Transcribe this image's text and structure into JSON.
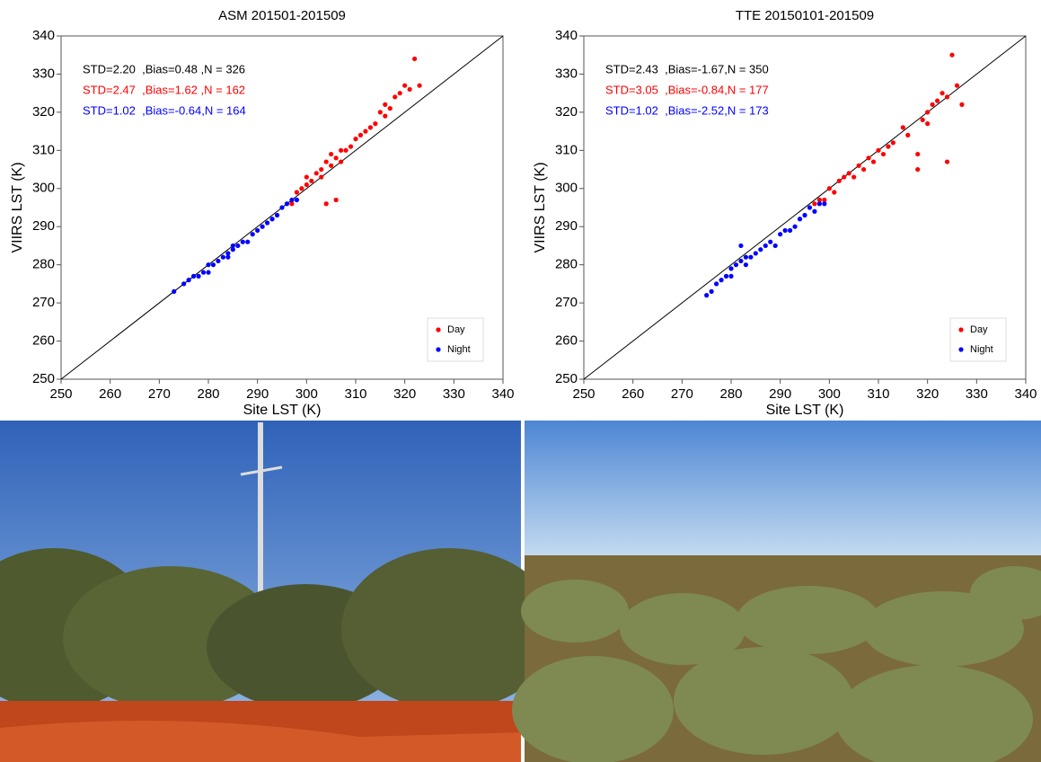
{
  "chart_data": [
    {
      "type": "scatter",
      "title": "ASM 201501-201509",
      "x_label": "Site LST (K)",
      "y_label": "VIIRS LST (K)",
      "xlim": [
        250,
        340
      ],
      "ylim": [
        250,
        340
      ],
      "xticks": [
        250,
        260,
        270,
        280,
        290,
        300,
        310,
        320,
        330,
        340
      ],
      "yticks": [
        250,
        260,
        270,
        280,
        290,
        300,
        310,
        320,
        330,
        340
      ],
      "diagonal": true,
      "legend": "lower right",
      "annotations": [
        {
          "text": "STD=2.20  ,Bias=0.48 ,N = 326",
          "color": "#000000"
        },
        {
          "text": "STD=2.47  ,Bias=1.62 ,N = 162",
          "color": "#ff0000"
        },
        {
          "text": "STD=1.02  ,Bias=-0.64,N = 164",
          "color": "#0000ff"
        }
      ],
      "series": [
        {
          "name": "Day",
          "color": "#ff0000",
          "x": [
            297,
            298,
            299,
            300,
            300,
            301,
            302,
            303,
            303,
            304,
            305,
            305,
            306,
            307,
            307,
            308,
            309,
            310,
            311,
            312,
            313,
            314,
            315,
            316,
            316,
            317,
            318,
            319,
            320,
            321,
            322,
            323,
            304,
            306
          ],
          "values": [
            296,
            299,
            300,
            301,
            303,
            302,
            304,
            303,
            305,
            307,
            306,
            309,
            308,
            310,
            307,
            310,
            311,
            313,
            314,
            315,
            316,
            317,
            320,
            322,
            319,
            321,
            324,
            325,
            327,
            326,
            334,
            327,
            296,
            297
          ]
        },
        {
          "name": "Night",
          "color": "#0000ff",
          "x": [
            273,
            275,
            276,
            277,
            278,
            279,
            280,
            281,
            282,
            283,
            284,
            285,
            285,
            286,
            287,
            288,
            289,
            290,
            291,
            292,
            293,
            294,
            295,
            296,
            297,
            298,
            284,
            280
          ],
          "values": [
            273,
            275,
            276,
            277,
            277,
            278,
            280,
            280,
            281,
            282,
            283,
            284,
            285,
            285,
            286,
            286,
            288,
            289,
            290,
            291,
            292,
            293,
            295,
            296,
            297,
            297,
            282,
            278
          ]
        }
      ]
    },
    {
      "type": "scatter",
      "title": "TTE 20150101-201509",
      "x_label": "Site LST (K)",
      "y_label": "VIIRS LST (K)",
      "xlim": [
        250,
        340
      ],
      "ylim": [
        250,
        340
      ],
      "xticks": [
        250,
        260,
        270,
        280,
        290,
        300,
        310,
        320,
        330,
        340
      ],
      "yticks": [
        250,
        260,
        270,
        280,
        290,
        300,
        310,
        320,
        330,
        340
      ],
      "diagonal": true,
      "legend": "lower right",
      "annotations": [
        {
          "text": "STD=2.43  ,Bias=-1.67,N = 350",
          "color": "#000000"
        },
        {
          "text": "STD=3.05  ,Bias=-0.84,N = 177",
          "color": "#ff0000"
        },
        {
          "text": "STD=1.02  ,Bias=-2.52,N = 173",
          "color": "#0000ff"
        }
      ],
      "series": [
        {
          "name": "Day",
          "color": "#ff0000",
          "x": [
            297,
            298,
            299,
            300,
            301,
            302,
            303,
            304,
            305,
            306,
            307,
            308,
            309,
            310,
            311,
            312,
            313,
            315,
            316,
            318,
            319,
            320,
            321,
            322,
            323,
            324,
            325,
            326,
            327,
            324,
            318,
            320
          ],
          "values": [
            296,
            297,
            297,
            300,
            299,
            302,
            303,
            304,
            303,
            306,
            305,
            308,
            307,
            310,
            309,
            311,
            312,
            316,
            314,
            305,
            318,
            320,
            322,
            323,
            325,
            324,
            335,
            327,
            322,
            307,
            309,
            317
          ]
        },
        {
          "name": "Night",
          "color": "#0000ff",
          "x": [
            275,
            276,
            277,
            278,
            279,
            280,
            280,
            281,
            282,
            283,
            283,
            284,
            285,
            286,
            287,
            288,
            289,
            290,
            291,
            292,
            293,
            294,
            295,
            296,
            297,
            298,
            299,
            282
          ],
          "values": [
            272,
            273,
            275,
            276,
            277,
            277,
            279,
            280,
            281,
            280,
            282,
            282,
            283,
            284,
            285,
            286,
            285,
            288,
            289,
            289,
            290,
            292,
            293,
            295,
            294,
            296,
            296,
            285
          ]
        }
      ]
    }
  ]
}
